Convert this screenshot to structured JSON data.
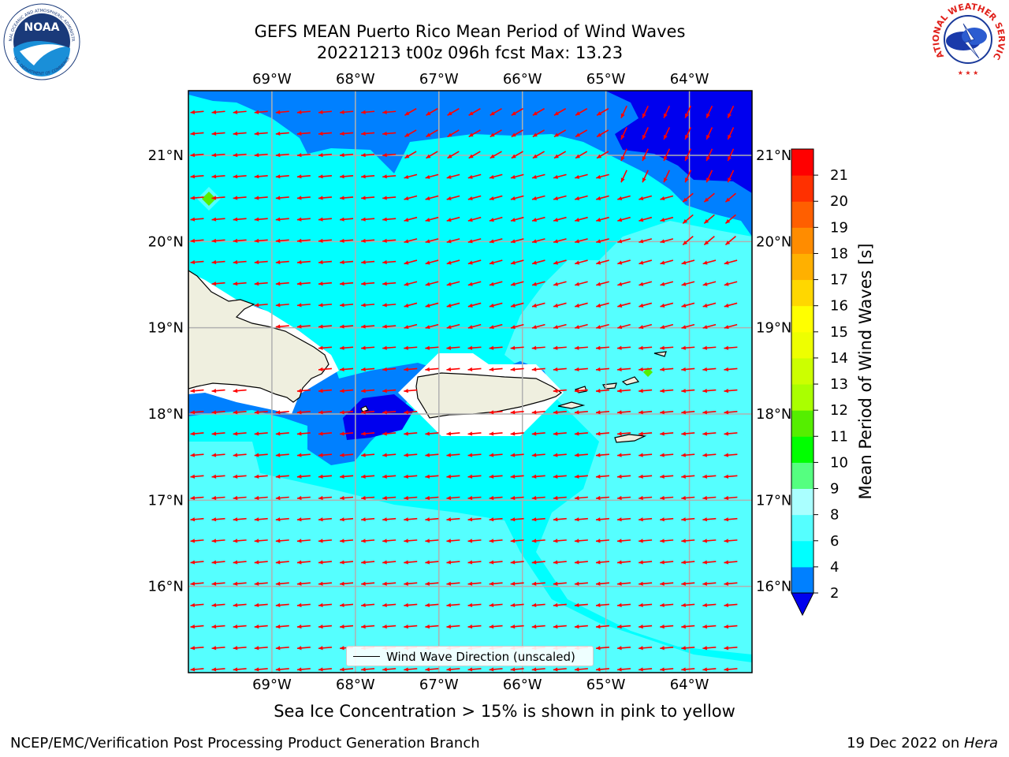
{
  "title": {
    "line1": "GEFS MEAN Puerto Rico Mean Period of Wind Waves",
    "line2": "20221213 t00z 096h fcst   Max: 13.23"
  },
  "map": {
    "lon_range": [
      -70.0,
      -63.25
    ],
    "lat_range": [
      15.0,
      21.75
    ],
    "lon_ticks": [
      {
        "value": -69,
        "label": "69°W"
      },
      {
        "value": -68,
        "label": "68°W"
      },
      {
        "value": -67,
        "label": "67°W"
      },
      {
        "value": -66,
        "label": "66°W"
      },
      {
        "value": -65,
        "label": "65°W"
      },
      {
        "value": -64,
        "label": "64°W"
      }
    ],
    "lat_ticks": [
      {
        "value": 21,
        "label": "21°N"
      },
      {
        "value": 20,
        "label": "20°N"
      },
      {
        "value": 19,
        "label": "19°N"
      },
      {
        "value": 18,
        "label": "18°N"
      },
      {
        "value": 17,
        "label": "17°N"
      },
      {
        "value": 16,
        "label": "16°N"
      }
    ],
    "colors": {
      "ocean_base": "#55ffff",
      "mid_band": "#00ffff",
      "deep_band": "#0080ff",
      "darkest_band": "#0000ee",
      "land": "#efefdf",
      "arrow": "#ff0000",
      "grid": "#b0b0b0"
    }
  },
  "colorbar": {
    "title": "Mean Period of Wind Waves [s]",
    "levels": [
      2,
      3,
      4,
      5,
      6,
      7,
      8,
      9,
      10,
      11,
      12,
      13,
      14,
      15,
      16,
      17,
      18,
      19,
      20,
      21
    ],
    "tick_labels": [
      "2",
      "4",
      "6",
      "8",
      "9",
      "10",
      "11",
      "12",
      "13",
      "14",
      "15",
      "16",
      "17",
      "18",
      "19",
      "20",
      "21"
    ],
    "colors": [
      "#0080ff",
      "#00ffff",
      "#55ffff",
      "#aaffff",
      "#55ff80",
      "#00ff00",
      "#55ee00",
      "#aaff00",
      "#ccff00",
      "#eeff00",
      "#ffff00",
      "#ffd700",
      "#ffb000",
      "#ff8c00",
      "#ff5f00",
      "#ff3000",
      "#ff0000"
    ],
    "under_color": "#0000ee"
  },
  "legend": {
    "label": "Wind Wave Direction (unscaled)"
  },
  "bottom_note": "Sea Ice Concentration > 15% is shown in pink to yellow",
  "footer": {
    "left": "NCEP/EMC/Verification Post Processing Product Generation Branch",
    "right_prefix": "19 Dec 2022 on ",
    "right_host": "Hera"
  },
  "logos": {
    "noaa_text": "NOAA",
    "noaa_ring_top": "NATIONAL OCEANIC AND ATMOSPHERIC ADMINISTRATION",
    "noaa_ring_bottom": "U.S. DEPARTMENT OF COMMERCE",
    "nws_ring": "NATIONAL WEATHER SERVICE"
  }
}
